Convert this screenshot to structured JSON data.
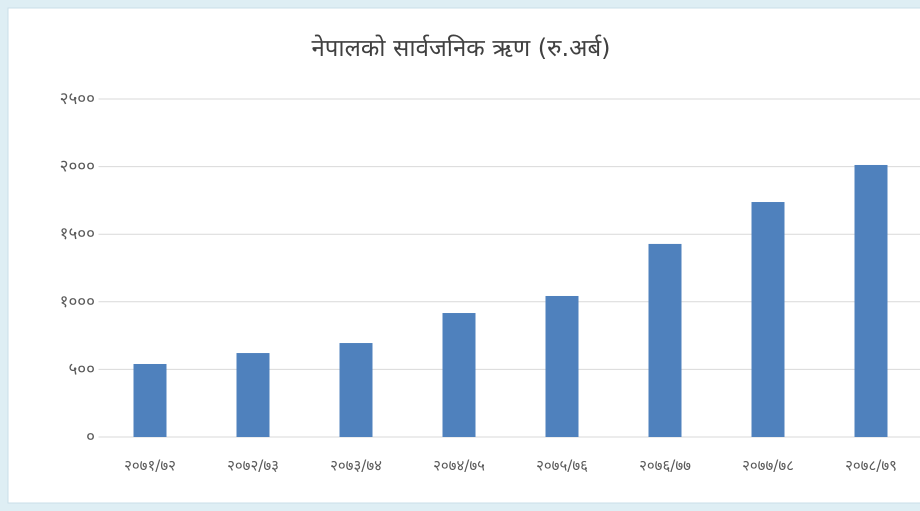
{
  "chart_data": {
    "type": "bar",
    "title": "नेपालको सार्वजनिक ऋण (रु.अर्ब)",
    "categories": [
      "२०७१/७२",
      "२०७२/७३",
      "२०७३/७४",
      "२०७४/७५",
      "२०७५/७६",
      "२०७६/७७",
      "२०७७/७८",
      "२०७८/७९"
    ],
    "values": [
      540,
      621,
      695,
      917,
      1043,
      1428,
      1738,
      2012
    ],
    "color": "#4f81bd",
    "ylim": [
      0,
      2500
    ],
    "yticks": [
      {
        "value": 0,
        "label": "०"
      },
      {
        "value": 500,
        "label": "५००"
      },
      {
        "value": 1000,
        "label": "१०००"
      },
      {
        "value": 1500,
        "label": "१५००"
      },
      {
        "value": 2000,
        "label": "२०००"
      },
      {
        "value": 2500,
        "label": "२५००"
      }
    ],
    "grid": true
  }
}
